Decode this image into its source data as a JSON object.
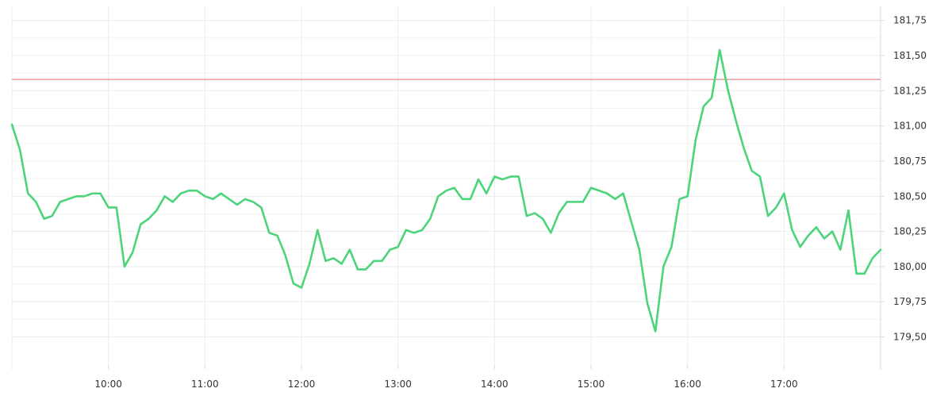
{
  "chart_data": {
    "type": "line",
    "title": "",
    "xlabel": "",
    "ylabel": "",
    "grid": true,
    "legend": "none",
    "x_ticks": [
      "10:00",
      "11:00",
      "12:00",
      "13:00",
      "14:00",
      "15:00",
      "16:00",
      "17:00"
    ],
    "y_ticks": [
      "181,75",
      "181,50",
      "181,25",
      "181,00",
      "180,75",
      "180,50",
      "180,25",
      "180,00",
      "179,75",
      "179,50"
    ],
    "y_tick_values": [
      181.75,
      181.5,
      181.25,
      181.0,
      180.75,
      180.5,
      180.25,
      180.0,
      179.75,
      179.5
    ],
    "ylim": [
      179.3,
      181.85
    ],
    "xlim_minutes": [
      540,
      1080
    ],
    "reference_line": {
      "value": 181.33,
      "color": "#e06c6c"
    },
    "series": [
      {
        "color": "#4cd47a",
        "points": [
          [
            540,
            181.01
          ],
          [
            545,
            180.83
          ],
          [
            550,
            180.52
          ],
          [
            555,
            180.46
          ],
          [
            560,
            180.34
          ],
          [
            565,
            180.36
          ],
          [
            570,
            180.46
          ],
          [
            575,
            180.48
          ],
          [
            580,
            180.5
          ],
          [
            585,
            180.5
          ],
          [
            590,
            180.52
          ],
          [
            595,
            180.52
          ],
          [
            600,
            180.42
          ],
          [
            605,
            180.42
          ],
          [
            610,
            180.0
          ],
          [
            615,
            180.1
          ],
          [
            620,
            180.3
          ],
          [
            625,
            180.34
          ],
          [
            630,
            180.4
          ],
          [
            635,
            180.5
          ],
          [
            640,
            180.46
          ],
          [
            645,
            180.52
          ],
          [
            650,
            180.54
          ],
          [
            655,
            180.54
          ],
          [
            660,
            180.5
          ],
          [
            665,
            180.48
          ],
          [
            670,
            180.52
          ],
          [
            675,
            180.48
          ],
          [
            680,
            180.44
          ],
          [
            685,
            180.48
          ],
          [
            690,
            180.46
          ],
          [
            695,
            180.42
          ],
          [
            700,
            180.24
          ],
          [
            705,
            180.22
          ],
          [
            710,
            180.08
          ],
          [
            715,
            179.88
          ],
          [
            720,
            179.85
          ],
          [
            725,
            180.02
          ],
          [
            730,
            180.26
          ],
          [
            735,
            180.04
          ],
          [
            740,
            180.06
          ],
          [
            745,
            180.02
          ],
          [
            750,
            180.12
          ],
          [
            755,
            179.98
          ],
          [
            760,
            179.98
          ],
          [
            765,
            180.04
          ],
          [
            770,
            180.04
          ],
          [
            775,
            180.12
          ],
          [
            780,
            180.14
          ],
          [
            785,
            180.26
          ],
          [
            790,
            180.24
          ],
          [
            795,
            180.26
          ],
          [
            800,
            180.34
          ],
          [
            805,
            180.5
          ],
          [
            810,
            180.54
          ],
          [
            815,
            180.56
          ],
          [
            820,
            180.48
          ],
          [
            825,
            180.48
          ],
          [
            830,
            180.62
          ],
          [
            835,
            180.52
          ],
          [
            840,
            180.64
          ],
          [
            845,
            180.62
          ],
          [
            850,
            180.64
          ],
          [
            855,
            180.64
          ],
          [
            860,
            180.36
          ],
          [
            865,
            180.38
          ],
          [
            870,
            180.34
          ],
          [
            875,
            180.24
          ],
          [
            880,
            180.38
          ],
          [
            885,
            180.46
          ],
          [
            890,
            180.46
          ],
          [
            895,
            180.46
          ],
          [
            900,
            180.56
          ],
          [
            905,
            180.54
          ],
          [
            910,
            180.52
          ],
          [
            915,
            180.48
          ],
          [
            920,
            180.52
          ],
          [
            925,
            180.32
          ],
          [
            930,
            180.12
          ],
          [
            935,
            179.74
          ],
          [
            940,
            179.54
          ],
          [
            945,
            180.0
          ],
          [
            950,
            180.14
          ],
          [
            955,
            180.48
          ],
          [
            960,
            180.5
          ],
          [
            965,
            180.9
          ],
          [
            970,
            181.14
          ],
          [
            975,
            181.2
          ],
          [
            980,
            181.54
          ],
          [
            985,
            181.26
          ],
          [
            990,
            181.04
          ],
          [
            995,
            180.84
          ],
          [
            1000,
            180.68
          ],
          [
            1005,
            180.64
          ],
          [
            1010,
            180.36
          ],
          [
            1015,
            180.42
          ],
          [
            1020,
            180.52
          ],
          [
            1025,
            180.26
          ],
          [
            1030,
            180.14
          ],
          [
            1035,
            180.22
          ],
          [
            1040,
            180.28
          ],
          [
            1045,
            180.2
          ],
          [
            1050,
            180.25
          ],
          [
            1055,
            180.12
          ],
          [
            1060,
            180.4
          ],
          [
            1065,
            179.95
          ],
          [
            1070,
            179.95
          ],
          [
            1075,
            180.06
          ],
          [
            1080,
            180.12
          ]
        ]
      }
    ]
  }
}
